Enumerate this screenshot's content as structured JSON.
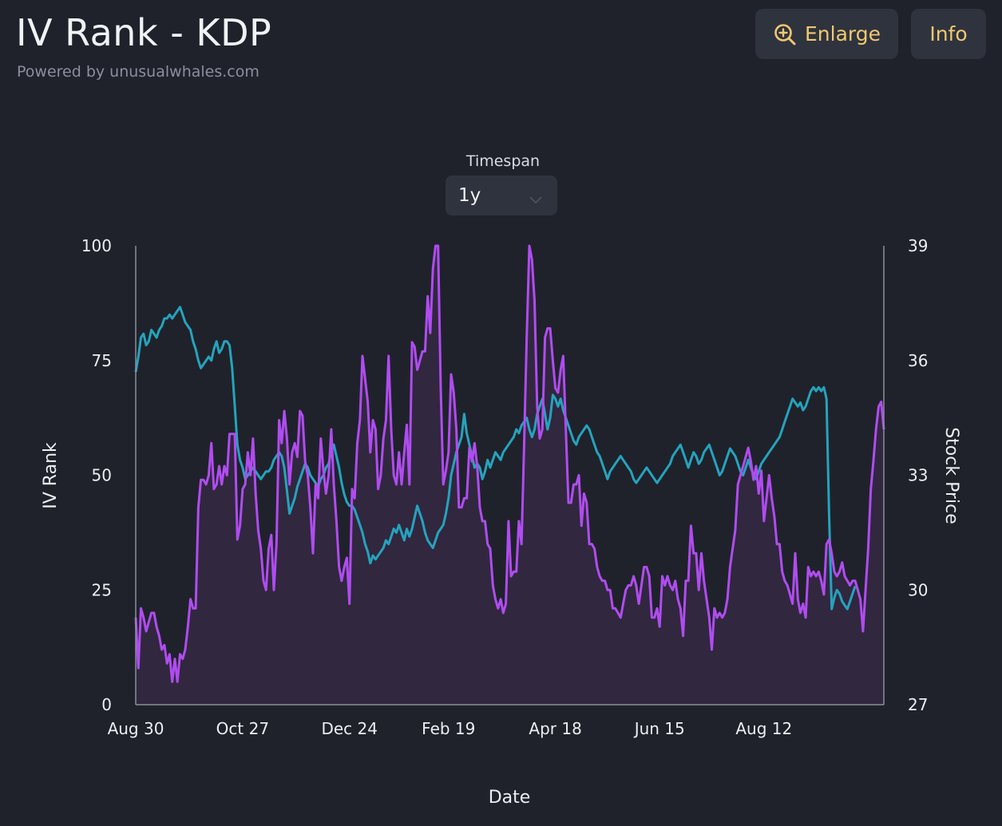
{
  "header": {
    "title": "IV Rank - KDP",
    "subtitle": "Powered by unusualwhales.com"
  },
  "buttons": {
    "enlarge_label": "Enlarge",
    "enlarge_icon": "zoom-in-icon",
    "info_label": "Info"
  },
  "timespan": {
    "label": "Timespan",
    "value": "1y",
    "icon": "chevron-down-icon"
  },
  "colors": {
    "background": "#1f222b",
    "iv_rank_line": "#b04cf0",
    "iv_rank_fill": "#31273f",
    "stock_price_line": "#25a3bd",
    "accent": "#f0c872"
  },
  "chart_data": {
    "type": "line",
    "xlabel": "Date",
    "ylabel": "IV Rank",
    "y2label": "Stock Price",
    "x_ticks": [
      "Aug 30",
      "Oct 27",
      "Dec 24",
      "Feb 19",
      "Apr 18",
      "Jun 15",
      "Aug 12"
    ],
    "x_tick_positions": [
      0,
      41,
      82,
      120,
      161,
      201,
      241
    ],
    "y_ticks": [
      "0",
      "25",
      "50",
      "75",
      "100"
    ],
    "y2_ticks": [
      "27",
      "30",
      "33",
      "36",
      "39"
    ],
    "ylim": [
      0,
      100
    ],
    "y2lim": [
      27,
      39
    ],
    "grid": false,
    "legend": "none",
    "series": [
      {
        "axis": "left",
        "style": "line-with-fill",
        "values": [
          19,
          8,
          21,
          19,
          16,
          18,
          20,
          20,
          17,
          15,
          12,
          13,
          9,
          11,
          5,
          10,
          5,
          11,
          10,
          12,
          17,
          23,
          21,
          21,
          43,
          49,
          49,
          48,
          50,
          57,
          47,
          48,
          52,
          48,
          52,
          50,
          59,
          59,
          59,
          36,
          39,
          47,
          48,
          55,
          50,
          58,
          46,
          38,
          34,
          27,
          25,
          34,
          37,
          25,
          35,
          62,
          57,
          64,
          58,
          48,
          55,
          57,
          54,
          64,
          63,
          53,
          50,
          43,
          33,
          48,
          45,
          58,
          51,
          46,
          50,
          60,
          48,
          40,
          30,
          27,
          30,
          32,
          22,
          47,
          45,
          57,
          62,
          76,
          71,
          66,
          55,
          62,
          60,
          47,
          50,
          58,
          62,
          76,
          60,
          50,
          48,
          55,
          48,
          55,
          61,
          48,
          79,
          78,
          73,
          75,
          77,
          77,
          89,
          81,
          95,
          100,
          100,
          69,
          48,
          51,
          55,
          72,
          68,
          60,
          43,
          43,
          45,
          45,
          56,
          53,
          57,
          52,
          43,
          40,
          40,
          35,
          34,
          26,
          23,
          21,
          23,
          20,
          22,
          40,
          28,
          29,
          29,
          40,
          35,
          57,
          80,
          100,
          97,
          88,
          65,
          58,
          60,
          80,
          82,
          82,
          75,
          69,
          68,
          73,
          76,
          60,
          44,
          44,
          48,
          48,
          50,
          39,
          46,
          44,
          35,
          35,
          34,
          30,
          28,
          27,
          27,
          25,
          25,
          21,
          21,
          20,
          19,
          22,
          25,
          26,
          26,
          28,
          26,
          22,
          26,
          30,
          30,
          28,
          19,
          19,
          21,
          17,
          28,
          26,
          28,
          26,
          25,
          27,
          23,
          21,
          15,
          27,
          27,
          39,
          33,
          33,
          25,
          33,
          27,
          23,
          19,
          12,
          21,
          19,
          20,
          19,
          20,
          23,
          30,
          34,
          38,
          48,
          50,
          52,
          54,
          56,
          53,
          49,
          52,
          46,
          51,
          40,
          45,
          50,
          45,
          41,
          35,
          35,
          29,
          27,
          26,
          24,
          22,
          33,
          23,
          20,
          22,
          19,
          30,
          28,
          29,
          28,
          29,
          27,
          24,
          35,
          36,
          33,
          29,
          28,
          29,
          31,
          28,
          27,
          26,
          27,
          27,
          25,
          23,
          16,
          25,
          34,
          47,
          53,
          60,
          65,
          66,
          60
        ]
      },
      {
        "axis": "right",
        "style": "line",
        "values": [
          35.7,
          36.1,
          36.6,
          36.7,
          36.4,
          36.5,
          36.8,
          36.7,
          36.6,
          36.8,
          36.9,
          37.1,
          37.1,
          37.2,
          37.1,
          37.2,
          37.3,
          37.4,
          37.2,
          37.0,
          36.9,
          36.8,
          36.5,
          36.3,
          36.0,
          35.8,
          35.9,
          36.0,
          36.1,
          36.0,
          36.3,
          36.5,
          36.2,
          36.3,
          36.5,
          36.5,
          36.4,
          35.8,
          34.8,
          33.8,
          33.4,
          33.2,
          32.9,
          33.0,
          33.1,
          33.2,
          33.1,
          33.0,
          32.9,
          33.0,
          33.1,
          33.1,
          33.2,
          33.4,
          33.5,
          33.6,
          33.5,
          33.2,
          32.6,
          32.0,
          32.2,
          32.4,
          32.7,
          32.9,
          33.1,
          33.3,
          33.2,
          33.0,
          32.9,
          32.8,
          32.7,
          32.9,
          33.0,
          33.2,
          33.3,
          33.6,
          33.8,
          33.5,
          33.2,
          32.8,
          32.5,
          32.3,
          32.2,
          32.2,
          32.1,
          31.9,
          31.7,
          31.5,
          31.2,
          31.0,
          30.7,
          30.9,
          30.8,
          30.9,
          31.0,
          31.1,
          31.3,
          31.2,
          31.4,
          31.6,
          31.5,
          31.7,
          31.5,
          31.3,
          31.6,
          31.4,
          31.6,
          31.9,
          32.2,
          32.0,
          31.8,
          31.5,
          31.3,
          31.2,
          31.1,
          31.3,
          31.5,
          31.6,
          31.7,
          32.0,
          32.4,
          33.0,
          33.3,
          33.6,
          33.8,
          34.0,
          34.6,
          34.1,
          33.8,
          33.5,
          33.2,
          33.3,
          33.2,
          32.9,
          33.1,
          33.4,
          33.2,
          33.4,
          33.6,
          33.5,
          33.4,
          33.6,
          33.7,
          33.8,
          33.9,
          34.0,
          34.2,
          34.1,
          34.3,
          34.4,
          34.5,
          34.2,
          34.0,
          34.2,
          34.6,
          34.8,
          35.0,
          34.6,
          34.2,
          34.5,
          35.1,
          35.0,
          34.8,
          35.0,
          34.7,
          34.5,
          34.3,
          34.1,
          33.9,
          33.8,
          34.0,
          34.1,
          34.2,
          34.3,
          34.2,
          34.0,
          33.8,
          33.6,
          33.5,
          33.3,
          33.1,
          32.9,
          33.1,
          33.2,
          33.3,
          33.4,
          33.5,
          33.4,
          33.3,
          33.2,
          33.1,
          32.9,
          32.8,
          32.9,
          33.0,
          33.1,
          33.2,
          33.1,
          33.0,
          32.9,
          32.8,
          32.9,
          33.0,
          33.1,
          33.2,
          33.3,
          33.5,
          33.6,
          33.7,
          33.8,
          33.6,
          33.4,
          33.2,
          33.4,
          33.6,
          33.5,
          33.3,
          33.4,
          33.6,
          33.7,
          33.8,
          33.6,
          33.4,
          33.2,
          33.0,
          33.1,
          33.3,
          33.5,
          33.7,
          33.6,
          33.5,
          33.3,
          33.1,
          33.0,
          33.2,
          33.4,
          33.2,
          33.0,
          32.9,
          33.1,
          33.3,
          33.4,
          33.5,
          33.6,
          33.7,
          33.8,
          33.9,
          34.0,
          34.2,
          34.4,
          34.6,
          34.8,
          35.0,
          34.9,
          34.8,
          34.9,
          34.7,
          34.8,
          35.0,
          35.2,
          35.3,
          35.2,
          35.3,
          35.2,
          35.3,
          35.0,
          32.0,
          29.5,
          29.8,
          30.0,
          29.9,
          29.7,
          29.6,
          29.5,
          29.7,
          29.9,
          30.1
        ]
      }
    ]
  }
}
